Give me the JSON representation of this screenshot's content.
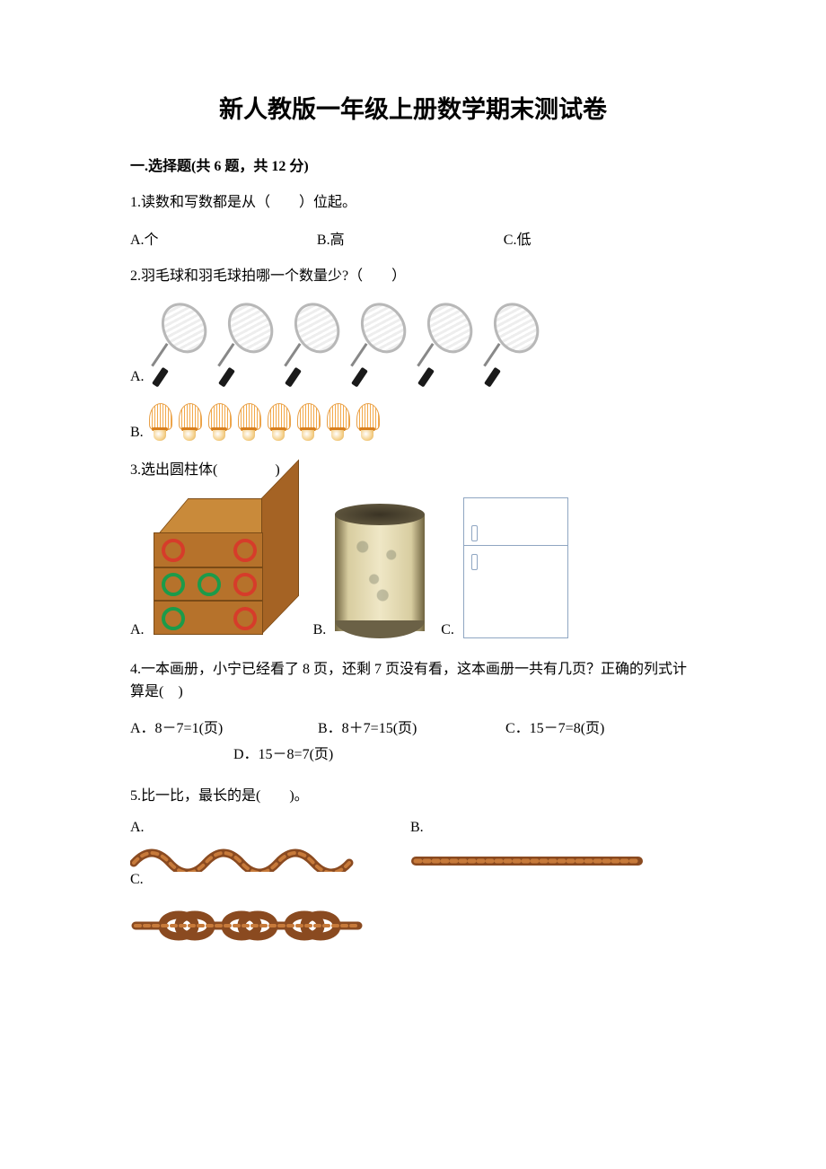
{
  "title": "新人教版一年级上册数学期末测试卷",
  "section1": {
    "header": "一.选择题(共 6 题，共 12 分)"
  },
  "q1": {
    "text": "1.读数和写数都是从（　　）位起。",
    "optA": "A.个",
    "optB": "B.高",
    "optC": "C.低"
  },
  "q2": {
    "text": "2.羽毛球和羽毛球拍哪一个数量少?（　　）",
    "labelA": "A.",
    "labelB": "B.",
    "rackets_count": 6,
    "shuttles_count": 8,
    "racket_colors": {
      "frame": "#b8b8b8",
      "shaft": "#888888",
      "handle": "#1a1a1a"
    },
    "shuttle_colors": {
      "feather": "#f3a94a",
      "cork": "#d8a24a"
    }
  },
  "q3": {
    "text": "3.选出圆柱体(　　　　)",
    "labelA": "A.",
    "labelB": "B.",
    "labelC": "C.",
    "cube_color": "#b6722b",
    "ring_red": "#d63c2a",
    "ring_green": "#1c9b4a",
    "cylinder_color": "#d8cda0",
    "fridge_color": "#8fa6c2"
  },
  "q4": {
    "text": "4.一本画册，小宁已经看了 8 页，还剩 7 页没有看，这本画册一共有几页？正确的列式计算是(　)",
    "optA": "A．8－7=1(页)",
    "optB": "B．8＋7=15(页)",
    "optC": "C．15－7=8(页)",
    "optD": "D．15－8=7(页)"
  },
  "q5": {
    "text": "5.比一比，最长的是(　　)。",
    "labelA": "A.",
    "labelB": "B.",
    "labelC": "C.",
    "rope_color": "#8a4a20",
    "rope_highlight": "#c77a3a"
  }
}
